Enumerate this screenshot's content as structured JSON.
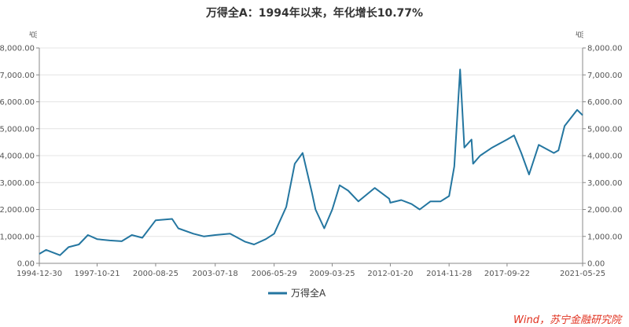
{
  "chart_data": {
    "type": "line",
    "title": "万得全A：1994年以来，年化增长10.77%",
    "y_unit_left": "点",
    "y_unit_right": "点",
    "ylim": [
      0,
      8000
    ],
    "y_ticks": [
      "0.00",
      "1,000.00",
      "2,000.00",
      "3,000.00",
      "4,000.00",
      "5,000.00",
      "6,000.00",
      "7,000.00",
      "8,000.00"
    ],
    "x_range": [
      "1994-12-30",
      "2021-05-25"
    ],
    "x_ticks": [
      "1994-12-30",
      "1997-10-21",
      "2000-08-25",
      "2003-07-18",
      "2006-05-29",
      "2009-03-25",
      "2012-01-20",
      "2014-11-28",
      "2017-09-22",
      "2021-05-25"
    ],
    "grid": true,
    "legend_position": "bottom",
    "series": [
      {
        "name": "万得全A",
        "color": "#2476a0",
        "x": [
          "1994-12-30",
          "1995-05-01",
          "1996-01-01",
          "1996-06-01",
          "1996-12-01",
          "1997-05-10",
          "1997-10-21",
          "1998-06-01",
          "1999-01-01",
          "1999-06-30",
          "2000-01-01",
          "2000-08-25",
          "2001-06-13",
          "2001-10-01",
          "2002-06-25",
          "2003-01-01",
          "2003-07-18",
          "2004-04-07",
          "2005-01-01",
          "2005-06-06",
          "2006-01-01",
          "2006-05-29",
          "2006-12-31",
          "2007-05-30",
          "2007-10-16",
          "2008-04-01",
          "2008-06-01",
          "2008-11-04",
          "2009-03-25",
          "2009-08-04",
          "2010-01-01",
          "2010-07-02",
          "2011-04-18",
          "2011-12-31",
          "2012-01-20",
          "2012-08-01",
          "2013-02-01",
          "2013-06-25",
          "2014-01-01",
          "2014-07-01",
          "2014-11-28",
          "2015-03-01",
          "2015-06-12",
          "2015-08-26",
          "2015-12-31",
          "2016-01-28",
          "2016-06-01",
          "2017-01-01",
          "2017-09-22",
          "2018-01-24",
          "2018-06-01",
          "2018-10-18",
          "2019-04-08",
          "2019-12-31",
          "2020-03-23",
          "2020-07-09",
          "2021-02-18",
          "2021-05-25"
        ],
        "y": [
          350,
          500,
          300,
          600,
          700,
          1050,
          900,
          850,
          820,
          1050,
          950,
          1600,
          1650,
          1300,
          1100,
          1000,
          1050,
          1100,
          800,
          700,
          900,
          1100,
          2100,
          3700,
          4100,
          2600,
          2000,
          1300,
          2000,
          2900,
          2700,
          2300,
          2800,
          2400,
          2250,
          2350,
          2200,
          2000,
          2300,
          2300,
          2500,
          3600,
          7200,
          4300,
          4600,
          3700,
          4000,
          4300,
          4600,
          4750,
          4100,
          3300,
          4400,
          4100,
          4200,
          5100,
          5700,
          5500
        ]
      }
    ],
    "source": "Wind，苏宁金融研究院"
  }
}
